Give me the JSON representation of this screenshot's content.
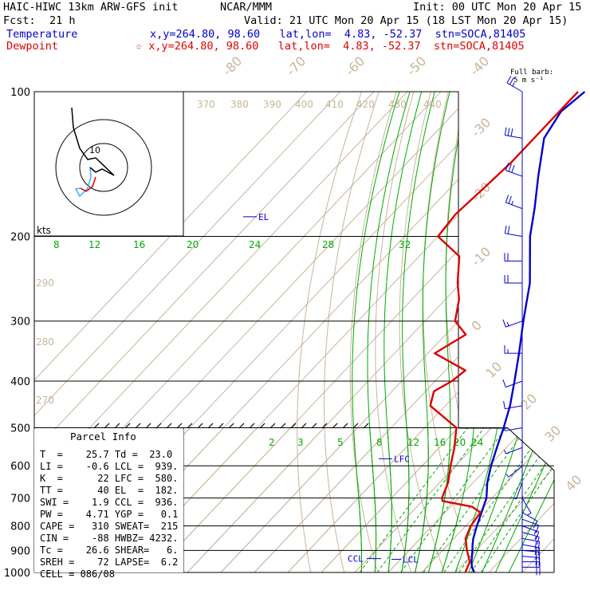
{
  "header": {
    "model": "HAIC-HIWC 13km ARW-GFS init",
    "org": "NCAR/MMM",
    "init": "Init: 00 UTC Mon 20 Apr 15",
    "fcst_label": "Fcst:",
    "fcst_value": "21 h",
    "valid": "Valid: 21 UTC Mon 20 Apr 15 (18 LST Mon 20 Apr 15)",
    "temp_label": "Temperature",
    "dew_label": "Dewpoint",
    "temp_loc": "x,y=264.80, 98.60   lat,lon=  4.83, -52.37  stn=SOCA,81405",
    "dew_loc": "☆ x,y=264.80, 98.60   lat,lon=  4.83, -52.37  stn=SOCA,81405",
    "barb_title_1": "Full barb:",
    "barb_title_2": "5 m s⁻¹"
  },
  "parcel_info": {
    "title": "Parcel Info",
    "rows": [
      "T  =    25.7 Td =  23.0",
      "LI =    -0.6 LCL =  939.",
      "K  =      22 LFC =  580.",
      "TT =      40 EL  =  182.",
      "SWI =    1.9 CCL =  936.",
      "PW =    4.71 YGP =   0.1",
      "CAPE =   310 SWEAT=  215",
      "CIN =    -88 HWBZ= 4232.",
      "Tc =    26.6 SHEAR=   6.",
      "SREH =    72 LAPSE=  6.2",
      "CELL = 086/08"
    ]
  },
  "colors": {
    "temperature": "#0000cc",
    "dewpoint": "#dd0000",
    "isotherm": "#c8b49a",
    "dry_adiabat": "#c8b49a",
    "moist_adiabat": "#00aa00",
    "mixing_ratio": "#00aa00",
    "isobar": "#000000",
    "hodograph_low": "#44aaff",
    "hodograph_high": "#000000"
  },
  "chart_data": {
    "type": "line",
    "title": "",
    "xlabel": "",
    "ylabel": "",
    "pressure_range": [
      1000,
      100
    ],
    "pressure_ticks": [
      100,
      200,
      300,
      400,
      500,
      600,
      700,
      800,
      900,
      1000
    ],
    "isotherm_labels": [
      "-80",
      "-70",
      "-60",
      "-50",
      "-40",
      "-30",
      "-20",
      "-10",
      "0",
      "10",
      "20",
      "30",
      "40"
    ],
    "theta_labels": [
      "370",
      "380",
      "390",
      "400",
      "410",
      "420",
      "430",
      "440",
      "290",
      "280",
      "270"
    ],
    "moist_labels": [
      "8",
      "12",
      "16",
      "20",
      "24",
      "28",
      "32"
    ],
    "mixing_labels": [
      "2",
      "3",
      "5",
      "8",
      "12",
      "16",
      "20",
      "24"
    ],
    "annotations": [
      "EL",
      "LFC",
      "LCL",
      "CCL"
    ],
    "hodograph": {
      "units_label": "kts",
      "ring_label": "10"
    },
    "series": [
      {
        "name": "Temperature",
        "pressure": [
          1000,
          975,
          950,
          925,
          900,
          875,
          850,
          800,
          750,
          700,
          650,
          600,
          550,
          500,
          450,
          400,
          350,
          300,
          250,
          200,
          175,
          150,
          125,
          110,
          100
        ],
        "temp_c": [
          25.7,
          23.5,
          21.8,
          20.4,
          18.9,
          17.3,
          15.8,
          13.3,
          10.9,
          8.3,
          4.2,
          0.6,
          -2.8,
          -6.4,
          -10.7,
          -16.3,
          -22.8,
          -30.6,
          -39.4,
          -52.5,
          -59.0,
          -67.0,
          -76.0,
          -78.5,
          -77.0
        ]
      },
      {
        "name": "Dewpoint",
        "pressure": [
          1000,
          950,
          900,
          850,
          800,
          750,
          730,
          710,
          700,
          650,
          600,
          550,
          500,
          450,
          420,
          400,
          380,
          350,
          320,
          300,
          270,
          250,
          220,
          200,
          180,
          160,
          140,
          120,
          100
        ],
        "temp_c": [
          23.0,
          21.3,
          17.3,
          13.5,
          11.5,
          10.6,
          6.5,
          -4.0,
          -5.0,
          -7.5,
          -11.5,
          -15.5,
          -20.5,
          -34.5,
          -37.5,
          -35.0,
          -34.0,
          -48.0,
          -44.0,
          -51.0,
          -56.0,
          -61.0,
          -68.0,
          -80.0,
          -81.0,
          -80.0,
          -79.0,
          -79.0,
          -79.0
        ]
      }
    ],
    "winds": {
      "pressure": [
        975,
        950,
        925,
        900,
        875,
        850,
        825,
        800,
        775,
        750,
        700,
        650,
        600,
        550,
        500,
        450,
        400,
        350,
        300,
        250,
        225,
        200,
        175,
        150,
        125,
        100
      ],
      "direction": [
        90,
        90,
        95,
        95,
        100,
        100,
        105,
        110,
        110,
        120,
        150,
        200,
        230,
        250,
        260,
        260,
        250,
        270,
        250,
        270,
        270,
        280,
        290,
        290,
        280,
        300
      ],
      "speed_ms": [
        10,
        12,
        12,
        11,
        10,
        10,
        9,
        8,
        7,
        6,
        4,
        3,
        3,
        4,
        4,
        5,
        6,
        8,
        9,
        10,
        10,
        12,
        14,
        15,
        16,
        14
      ]
    }
  }
}
